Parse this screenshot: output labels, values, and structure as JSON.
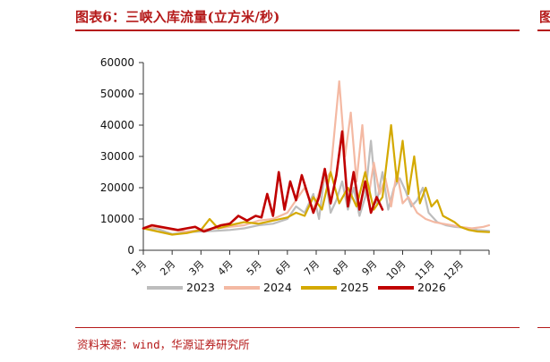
{
  "title": "图表6：三峡入库流量(立方米/秒)",
  "source": "资料来源：wind，华源证券研究所",
  "right_edge_fragment": "图",
  "colors": {
    "accent": "#b51a1a",
    "series_2023": "#bdbdbd",
    "series_2024": "#f4b9a3",
    "series_2025": "#d4a900",
    "series_2026": "#c00000"
  },
  "chart_data": {
    "type": "line",
    "title": "",
    "xlabel": "",
    "ylabel": "",
    "ylim": [
      0,
      60000
    ],
    "yticks": [
      0,
      10000,
      20000,
      30000,
      40000,
      50000,
      60000
    ],
    "ytick_labels": [
      "0",
      "10000",
      "20000",
      "30000",
      "40000",
      "50000",
      "60000"
    ],
    "xlim": [
      0,
      12
    ],
    "month_labels": [
      "1月",
      "2月",
      "3月",
      "4月",
      "5月",
      "6月",
      "7月",
      "8月",
      "9月",
      "10月",
      "11月",
      "12月"
    ],
    "legend_position": "bottom",
    "grid": false,
    "series": [
      {
        "name": "2023",
        "color": "#bdbdbd",
        "x": [
          0,
          0.5,
          1,
          1.5,
          2,
          2.5,
          3,
          3.5,
          4,
          4.5,
          5,
          5.3,
          5.6,
          5.9,
          6.1,
          6.3,
          6.5,
          6.7,
          6.9,
          7.1,
          7.3,
          7.5,
          7.7,
          7.9,
          8.1,
          8.3,
          8.5,
          8.7,
          8.9,
          9.1,
          9.3,
          9.5,
          9.7,
          9.9,
          10.2,
          10.5,
          10.8,
          11.2,
          11.6,
          12
        ],
        "values": [
          7000,
          6800,
          5200,
          5800,
          6000,
          6200,
          6500,
          7000,
          8000,
          8500,
          10000,
          14000,
          12000,
          18000,
          10000,
          25000,
          12000,
          16000,
          22000,
          13000,
          20000,
          11000,
          17000,
          35000,
          15000,
          25000,
          13000,
          20000,
          23000,
          19000,
          14000,
          16000,
          20000,
          12000,
          9000,
          8000,
          7500,
          7200,
          6500,
          6200
        ]
      },
      {
        "name": "2024",
        "color": "#f4b9a3",
        "x": [
          0,
          0.5,
          1,
          1.5,
          2,
          2.5,
          3,
          3.5,
          4,
          4.5,
          5,
          5.3,
          5.6,
          5.9,
          6.2,
          6.5,
          6.8,
          7.0,
          7.2,
          7.4,
          7.6,
          7.8,
          8.0,
          8.2,
          8.4,
          8.6,
          8.8,
          9.0,
          9.2,
          9.5,
          9.8,
          10.1,
          10.4,
          10.7,
          11.0,
          11.4,
          11.8,
          12
        ],
        "values": [
          7000,
          7500,
          6500,
          6000,
          6500,
          7000,
          7500,
          8000,
          9500,
          10000,
          12000,
          16000,
          20000,
          13000,
          21000,
          25000,
          54000,
          30000,
          44000,
          22000,
          40000,
          16000,
          28000,
          18000,
          23000,
          14000,
          25000,
          15000,
          17000,
          12000,
          10000,
          9000,
          8500,
          8000,
          7500,
          7000,
          7500,
          8000
        ]
      },
      {
        "name": "2025",
        "color": "#d4a900",
        "x": [
          0,
          0.5,
          1,
          1.5,
          2,
          2.3,
          2.6,
          3,
          3.5,
          4,
          4.5,
          5,
          5.3,
          5.6,
          5.9,
          6.2,
          6.5,
          6.8,
          7.1,
          7.4,
          7.7,
          8.0,
          8.3,
          8.6,
          8.8,
          9.0,
          9.2,
          9.4,
          9.6,
          9.8,
          10.0,
          10.2,
          10.4,
          10.6,
          10.8,
          11.0,
          11.3,
          11.6,
          12
        ],
        "values": [
          7000,
          6000,
          5000,
          5500,
          6500,
          10000,
          7000,
          8000,
          9000,
          8500,
          9500,
          10500,
          12000,
          11000,
          17000,
          13000,
          25000,
          15000,
          20000,
          14000,
          25000,
          13000,
          17000,
          40000,
          22000,
          35000,
          18000,
          30000,
          15000,
          20000,
          14000,
          16000,
          11000,
          10000,
          9000,
          7500,
          6500,
          6000,
          5800
        ]
      },
      {
        "name": "2026",
        "color": "#c00000",
        "x": [
          0,
          0.3,
          0.6,
          0.9,
          1.2,
          1.5,
          1.8,
          2.1,
          2.4,
          2.7,
          3.0,
          3.3,
          3.6,
          3.9,
          4.1,
          4.3,
          4.5,
          4.7,
          4.9,
          5.1,
          5.3,
          5.5,
          5.7,
          5.9,
          6.1,
          6.3,
          6.5,
          6.7,
          6.9,
          7.1,
          7.3,
          7.5,
          7.7,
          7.9,
          8.1,
          8.3
        ],
        "values": [
          7000,
          8000,
          7500,
          7000,
          6500,
          7000,
          7500,
          6000,
          7000,
          8000,
          8500,
          11000,
          9500,
          11000,
          10500,
          18000,
          11000,
          25000,
          13000,
          22000,
          16000,
          24000,
          18000,
          12000,
          17000,
          26000,
          15000,
          24000,
          38000,
          14000,
          25000,
          13000,
          22000,
          12000,
          17000,
          13000
        ]
      }
    ]
  }
}
